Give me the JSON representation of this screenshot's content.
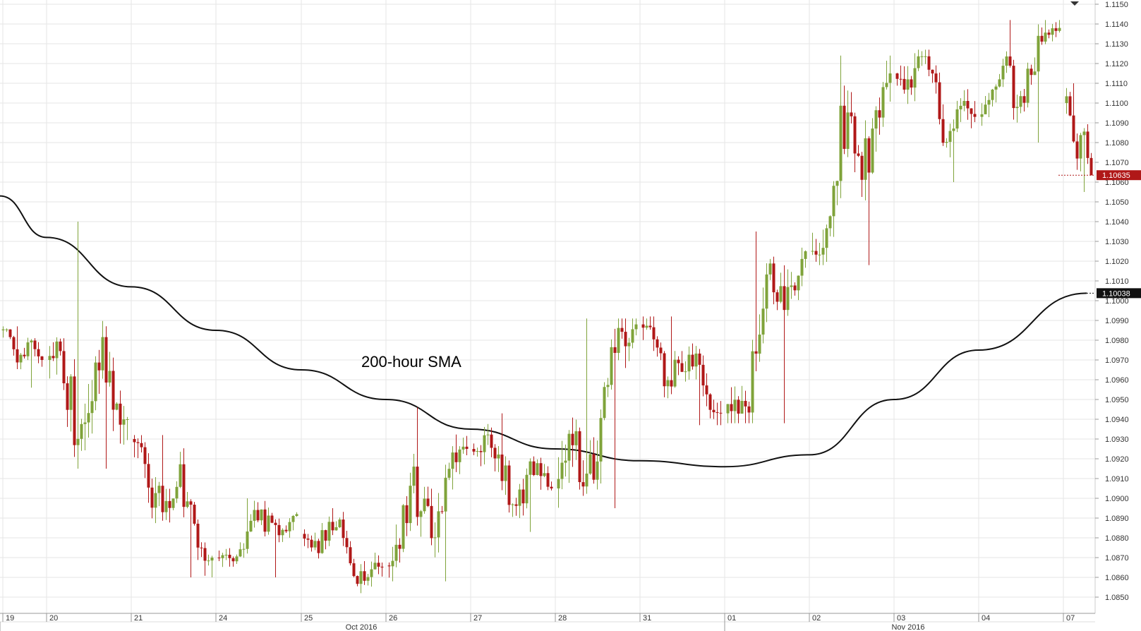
{
  "chart_data": {
    "type": "candlestick",
    "title": "",
    "xlabel": "",
    "ylabel": "",
    "ylim": [
      1.0845,
      1.1152
    ],
    "y_ticks": [
      "1.1150",
      "1.1140",
      "1.1130",
      "1.1120",
      "1.1110",
      "1.1100",
      "1.1090",
      "1.1080",
      "1.1070",
      "1.1060",
      "1.1050",
      "1.1040",
      "1.1030",
      "1.1020",
      "1.1010",
      "1.1000",
      "1.0990",
      "1.0980",
      "1.0970",
      "1.0960",
      "1.0950",
      "1.0940",
      "1.0930",
      "1.0920",
      "1.0910",
      "1.0900",
      "1.0890",
      "1.0880",
      "1.0870",
      "1.0860",
      "1.0850"
    ],
    "day_labels": [
      "19",
      "20",
      "21",
      "24",
      "25",
      "26",
      "27",
      "28",
      "31",
      "01",
      "02",
      "03",
      "04",
      "07"
    ],
    "month_labels": [
      "Oct 2016",
      "Nov 2016"
    ],
    "annotation": "200-hour SMA",
    "last_price_label": "1.10635",
    "sma_value_label": "1.10038",
    "colors": {
      "up": "#7fa33a",
      "down": "#b01818",
      "sma": "#111111",
      "last_price_bg": "#b01818",
      "sma_label_bg": "#111111",
      "grid": "#e6e6e6"
    },
    "days": [
      {
        "label": "19",
        "open": 1.0985,
        "close": 1.097,
        "high": 1.0987,
        "low": 1.0956
      },
      {
        "label": "20",
        "open": 1.097,
        "close": 1.094,
        "high": 1.104,
        "low": 1.0915
      },
      {
        "label": "21",
        "open": 1.093,
        "close": 1.087,
        "high": 1.0932,
        "low": 1.086
      },
      {
        "label": "24",
        "open": 1.087,
        "close": 1.0892,
        "high": 1.09,
        "low": 1.086
      },
      {
        "label": "25",
        "open": 1.0882,
        "close": 1.0865,
        "high": 1.0895,
        "low": 1.0852
      },
      {
        "label": "26",
        "open": 1.0866,
        "close": 1.0925,
        "high": 1.0946,
        "low": 1.0858
      },
      {
        "label": "27",
        "open": 1.0925,
        "close": 1.0905,
        "high": 1.0943,
        "low": 1.0883
      },
      {
        "label": "28",
        "open": 1.0905,
        "close": 1.0988,
        "high": 1.0991,
        "low": 1.0895
      },
      {
        "label": "31",
        "open": 1.0988,
        "close": 1.0943,
        "high": 1.0992,
        "low": 1.0937
      },
      {
        "label": "01",
        "open": 1.0943,
        "close": 1.1025,
        "high": 1.1035,
        "low": 1.0938
      },
      {
        "label": "02",
        "open": 1.1025,
        "close": 1.1115,
        "high": 1.1124,
        "low": 1.1018
      },
      {
        "label": "03",
        "open": 1.1115,
        "close": 1.1093,
        "high": 1.1127,
        "low": 1.106
      },
      {
        "label": "04",
        "open": 1.1093,
        "close": 1.1138,
        "high": 1.1142,
        "low": 1.108
      },
      {
        "label": "07",
        "open": 1.11,
        "close": 1.10635,
        "high": 1.111,
        "low": 1.1055
      }
    ],
    "sma": [
      {
        "day": "19",
        "value": 1.1053
      },
      {
        "day": "20",
        "value": 1.1032
      },
      {
        "day": "21",
        "value": 1.1007
      },
      {
        "day": "24",
        "value": 1.0985
      },
      {
        "day": "25",
        "value": 1.0965
      },
      {
        "day": "26",
        "value": 1.095
      },
      {
        "day": "27",
        "value": 1.0935
      },
      {
        "day": "28",
        "value": 1.0925
      },
      {
        "day": "31",
        "value": 1.0919
      },
      {
        "day": "01",
        "value": 1.0916
      },
      {
        "day": "02",
        "value": 1.0922
      },
      {
        "day": "03",
        "value": 1.095
      },
      {
        "day": "04",
        "value": 1.0975
      },
      {
        "day": "07",
        "value": 1.10038
      }
    ]
  }
}
